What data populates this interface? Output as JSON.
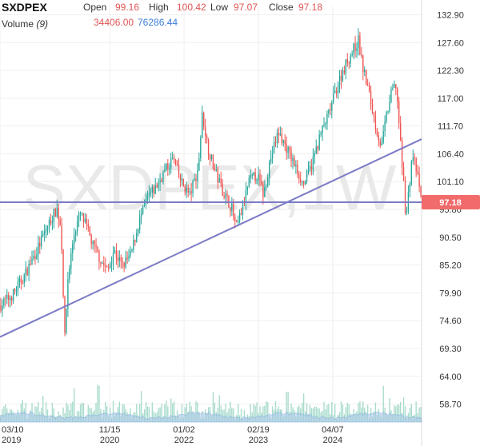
{
  "header": {
    "symbol": "SXDPEX",
    "open_label": "Open",
    "open_value": "99.16",
    "high_label": "High",
    "high_value": "100.42",
    "low_label": "Low",
    "low_value": "97.07",
    "close_label": "Close",
    "close_value": "97.18",
    "volume_label": "Volume",
    "volume_period": "(9)",
    "volume_value": "34406.00",
    "volume_ma_value": "76286.44"
  },
  "watermark": "SXDPEX,1W",
  "colors": {
    "up": "#26a69a",
    "down": "#ef5350",
    "trendline": "#7b7bc6",
    "price_tag": "#f26b6b",
    "volume_area": "#a9c7ea",
    "volume_bar": "#92d2c0"
  },
  "chart_data": {
    "type": "candlestick",
    "y_ticks": [
      "132.90",
      "127.60",
      "122.30",
      "117.00",
      "111.70",
      "106.40",
      "101.10",
      "95.80",
      "90.50",
      "85.20",
      "79.90",
      "74.60",
      "69.30",
      "64.00",
      "58.70"
    ],
    "ylim": [
      56.5,
      134.5
    ],
    "x_ticks": [
      {
        "top": "03/10",
        "bottom": "2019",
        "t": 0.0
      },
      {
        "top": "11/15",
        "bottom": "2020",
        "t": 0.2602
      },
      {
        "top": "01/02",
        "bottom": "2022",
        "t": 0.4365
      },
      {
        "top": "02/19",
        "bottom": "2023",
        "t": 0.6128
      },
      {
        "top": "04/07",
        "bottom": "2024",
        "t": 0.7891
      }
    ],
    "last_price": "97.18",
    "last_price_value": 97.18,
    "trendline": {
      "from": [
        0.0,
        71.5
      ],
      "to": [
        1.0,
        109.2
      ]
    },
    "price_path": [
      [
        0.0,
        77.5
      ],
      [
        0.03,
        79.5
      ],
      [
        0.06,
        83.5
      ],
      [
        0.09,
        88.5
      ],
      [
        0.115,
        93.0
      ],
      [
        0.135,
        96.0
      ],
      [
        0.145,
        92.0
      ],
      [
        0.15,
        80.0
      ],
      [
        0.154,
        70.5
      ],
      [
        0.16,
        82.0
      ],
      [
        0.175,
        91.0
      ],
      [
        0.19,
        95.0
      ],
      [
        0.205,
        92.5
      ],
      [
        0.22,
        89.0
      ],
      [
        0.24,
        86.0
      ],
      [
        0.255,
        84.0
      ],
      [
        0.27,
        88.0
      ],
      [
        0.29,
        85.0
      ],
      [
        0.31,
        87.0
      ],
      [
        0.33,
        93.5
      ],
      [
        0.35,
        98.0
      ],
      [
        0.37,
        100.0
      ],
      [
        0.39,
        103.0
      ],
      [
        0.41,
        105.5
      ],
      [
        0.43,
        101.0
      ],
      [
        0.45,
        98.5
      ],
      [
        0.47,
        103.5
      ],
      [
        0.48,
        114.0
      ],
      [
        0.492,
        108.0
      ],
      [
        0.51,
        103.0
      ],
      [
        0.53,
        99.0
      ],
      [
        0.55,
        96.0
      ],
      [
        0.56,
        92.0
      ],
      [
        0.575,
        96.0
      ],
      [
        0.59,
        101.0
      ],
      [
        0.61,
        102.5
      ],
      [
        0.625,
        98.5
      ],
      [
        0.64,
        105.0
      ],
      [
        0.66,
        110.5
      ],
      [
        0.68,
        107.5
      ],
      [
        0.7,
        104.0
      ],
      [
        0.72,
        100.5
      ],
      [
        0.74,
        104.5
      ],
      [
        0.76,
        110.0
      ],
      [
        0.78,
        114.0
      ],
      [
        0.8,
        119.5
      ],
      [
        0.82,
        123.5
      ],
      [
        0.84,
        126.5
      ],
      [
        0.85,
        128.0
      ],
      [
        0.86,
        123.0
      ],
      [
        0.875,
        118.0
      ],
      [
        0.89,
        112.0
      ],
      [
        0.905,
        107.5
      ],
      [
        0.915,
        113.0
      ],
      [
        0.93,
        118.5
      ],
      [
        0.94,
        119.5
      ],
      [
        0.95,
        108.0
      ],
      [
        0.958,
        100.0
      ],
      [
        0.963,
        94.0
      ],
      [
        0.968,
        98.0
      ],
      [
        0.978,
        106.5
      ],
      [
        0.988,
        103.0
      ],
      [
        1.0,
        97.18
      ]
    ]
  }
}
